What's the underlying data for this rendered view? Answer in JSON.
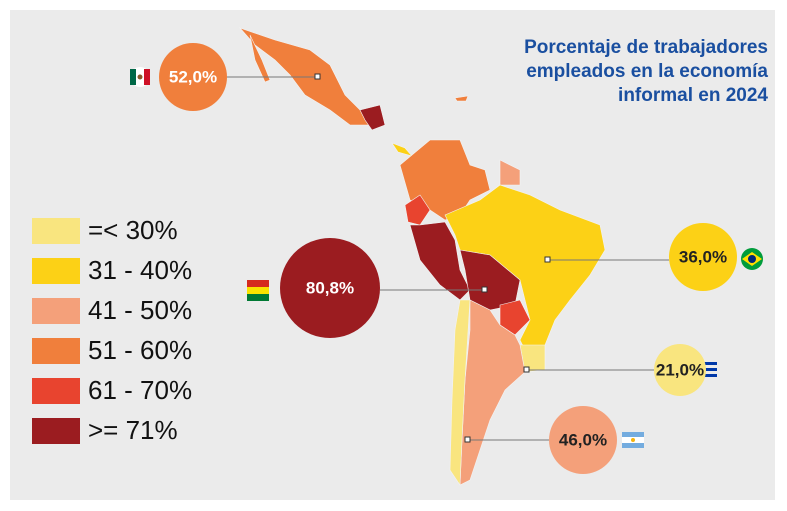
{
  "title": [
    "Porcentaje de trabajadores",
    "empleados en la economía",
    "informal en 2024"
  ],
  "legend": [
    {
      "label": "=< 30%",
      "color": "#f9e57f"
    },
    {
      "label": "31 - 40%",
      "color": "#fcd116"
    },
    {
      "label": "41 - 50%",
      "color": "#f4a07a"
    },
    {
      "label": "51 - 60%",
      "color": "#f07f3c"
    },
    {
      "label": "61 - 70%",
      "color": "#e8442f"
    },
    {
      "label": ">= 71%",
      "color": "#9b1c20"
    }
  ],
  "callouts": [
    {
      "label": "52,0%",
      "category": 3
    },
    {
      "label": "80,8%",
      "category": 5
    },
    {
      "label": "36,0%",
      "category": 1
    },
    {
      "label": "21,0%",
      "category": 0
    },
    {
      "label": "46,0%",
      "category": 2
    }
  ]
}
